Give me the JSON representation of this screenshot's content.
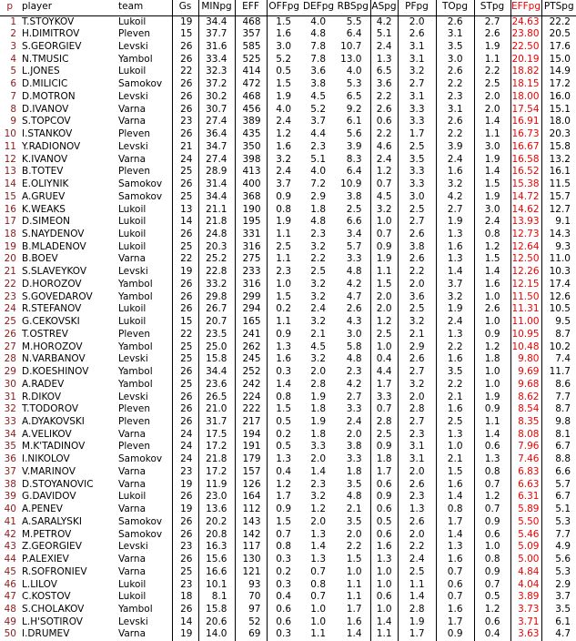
{
  "colors": {
    "highlight": "#f00000",
    "rank": "#8b1a1a",
    "text": "#000000",
    "grid": "#000000",
    "background": "#ffffff"
  },
  "table": {
    "columns": [
      {
        "key": "p",
        "label": "p"
      },
      {
        "key": "player",
        "label": "player"
      },
      {
        "key": "team",
        "label": "team"
      },
      {
        "key": "gs",
        "label": "Gs"
      },
      {
        "key": "minpg",
        "label": "MINpg"
      },
      {
        "key": "eff",
        "label": "EFF"
      },
      {
        "key": "offpg",
        "label": "OFFpg"
      },
      {
        "key": "defpg",
        "label": "DEFpg"
      },
      {
        "key": "rbspg",
        "label": "RBSpg"
      },
      {
        "key": "aspg",
        "label": "ASpg"
      },
      {
        "key": "pfpg",
        "label": "PFpg"
      },
      {
        "key": "topg",
        "label": "TOpg"
      },
      {
        "key": "stpg",
        "label": "STpg"
      },
      {
        "key": "effpg",
        "label": "EFFpg"
      },
      {
        "key": "ptspg",
        "label": "PTSpg"
      }
    ],
    "rows": [
      [
        "1",
        "T.STOYKOV",
        "Lukoil",
        "19",
        "34.4",
        "468",
        "1.5",
        "4.0",
        "5.5",
        "4.2",
        "2.0",
        "2.6",
        "2.7",
        "24.63",
        "22.2"
      ],
      [
        "2",
        "H.DIMITROV",
        "Pleven",
        "15",
        "37.7",
        "357",
        "1.6",
        "4.8",
        "6.4",
        "5.1",
        "2.6",
        "3.1",
        "2.6",
        "23.80",
        "20.5"
      ],
      [
        "3",
        "S.GEORGIEV",
        "Levski",
        "26",
        "31.6",
        "585",
        "3.0",
        "7.8",
        "10.7",
        "2.4",
        "3.1",
        "3.5",
        "1.9",
        "22.50",
        "17.6"
      ],
      [
        "4",
        "N.TMUSIC",
        "Yambol",
        "26",
        "33.4",
        "525",
        "5.2",
        "7.8",
        "13.0",
        "1.3",
        "3.1",
        "3.0",
        "1.1",
        "20.19",
        "15.0"
      ],
      [
        "5",
        "L.JONES",
        "Lukoil",
        "22",
        "32.3",
        "414",
        "0.5",
        "3.6",
        "4.0",
        "6.5",
        "3.2",
        "2.6",
        "2.2",
        "18.82",
        "14.9"
      ],
      [
        "6",
        "D.MILICIC",
        "Samokov",
        "26",
        "37.2",
        "472",
        "1.5",
        "3.8",
        "5.3",
        "3.6",
        "2.7",
        "2.2",
        "2.5",
        "18.15",
        "17.2"
      ],
      [
        "7",
        "D.MOTRON",
        "Levski",
        "26",
        "30.2",
        "468",
        "1.9",
        "4.5",
        "6.5",
        "2.2",
        "3.1",
        "2.3",
        "2.0",
        "18.00",
        "16.0"
      ],
      [
        "8",
        "D.IVANOV",
        "Varna",
        "26",
        "30.7",
        "456",
        "4.0",
        "5.2",
        "9.2",
        "2.6",
        "3.3",
        "3.1",
        "2.0",
        "17.54",
        "15.1"
      ],
      [
        "9",
        "S.TOPCOV",
        "Varna",
        "23",
        "27.4",
        "389",
        "2.4",
        "3.7",
        "6.1",
        "0.6",
        "3.3",
        "2.6",
        "1.4",
        "16.91",
        "18.0"
      ],
      [
        "10",
        "I.STANKOV",
        "Pleven",
        "26",
        "36.4",
        "435",
        "1.2",
        "4.4",
        "5.6",
        "2.2",
        "1.7",
        "2.2",
        "1.1",
        "16.73",
        "20.3"
      ],
      [
        "11",
        "Y.RADIONOV",
        "Levski",
        "21",
        "34.7",
        "350",
        "1.6",
        "2.3",
        "3.9",
        "4.6",
        "2.5",
        "3.9",
        "3.0",
        "16.67",
        "15.8"
      ],
      [
        "12",
        "K.IVANOV",
        "Varna",
        "24",
        "27.4",
        "398",
        "3.2",
        "5.1",
        "8.3",
        "2.4",
        "3.5",
        "2.4",
        "1.9",
        "16.58",
        "13.2"
      ],
      [
        "13",
        "B.TOTEV",
        "Pleven",
        "25",
        "28.9",
        "413",
        "2.4",
        "4.0",
        "6.4",
        "1.2",
        "3.3",
        "1.6",
        "1.4",
        "16.52",
        "16.1"
      ],
      [
        "14",
        "E.OLIYNIK",
        "Samokov",
        "26",
        "31.4",
        "400",
        "3.7",
        "7.2",
        "10.9",
        "0.7",
        "3.3",
        "3.2",
        "1.5",
        "15.38",
        "11.5"
      ],
      [
        "15",
        "A.GRUEV",
        "Samokov",
        "25",
        "34.4",
        "368",
        "0.9",
        "2.9",
        "3.8",
        "4.5",
        "3.0",
        "4.2",
        "1.9",
        "14.72",
        "15.7"
      ],
      [
        "16",
        "K.WEAKS",
        "Lukoil",
        "13",
        "21.1",
        "190",
        "0.8",
        "1.8",
        "2.5",
        "3.2",
        "2.5",
        "2.7",
        "3.0",
        "14.62",
        "12.7"
      ],
      [
        "17",
        "D.SIMEON",
        "Lukoil",
        "14",
        "21.8",
        "195",
        "1.9",
        "4.8",
        "6.6",
        "1.0",
        "2.7",
        "1.9",
        "2.4",
        "13.93",
        "9.1"
      ],
      [
        "18",
        "S.NAYDENOV",
        "Lukoil",
        "26",
        "24.8",
        "331",
        "1.1",
        "2.3",
        "3.4",
        "0.7",
        "2.6",
        "1.3",
        "0.8",
        "12.73",
        "14.3"
      ],
      [
        "19",
        "B.MLADENOV",
        "Lukoil",
        "25",
        "20.3",
        "316",
        "2.5",
        "3.2",
        "5.7",
        "0.9",
        "3.8",
        "1.6",
        "1.2",
        "12.64",
        "9.3"
      ],
      [
        "20",
        "B.BOEV",
        "Varna",
        "22",
        "25.2",
        "275",
        "1.1",
        "2.2",
        "3.3",
        "1.9",
        "2.6",
        "1.3",
        "1.5",
        "12.50",
        "11.0"
      ],
      [
        "21",
        "S.SLAVEYKOV",
        "Levski",
        "19",
        "22.8",
        "233",
        "2.3",
        "2.5",
        "4.8",
        "1.1",
        "2.2",
        "1.4",
        "1.4",
        "12.26",
        "10.3"
      ],
      [
        "22",
        "D.HOROZOV",
        "Yambol",
        "26",
        "33.2",
        "316",
        "1.0",
        "3.2",
        "4.2",
        "1.5",
        "2.0",
        "3.7",
        "1.6",
        "12.15",
        "17.4"
      ],
      [
        "23",
        "S.GOVEDAROV",
        "Yambol",
        "26",
        "29.8",
        "299",
        "1.5",
        "3.2",
        "4.7",
        "2.0",
        "3.6",
        "3.2",
        "1.0",
        "11.50",
        "12.6"
      ],
      [
        "24",
        "R.STEFANOV",
        "Lukoil",
        "26",
        "26.7",
        "294",
        "0.2",
        "2.4",
        "2.6",
        "2.0",
        "2.5",
        "1.9",
        "2.6",
        "11.31",
        "10.5"
      ],
      [
        "25",
        "G.CEKOVSKI",
        "Lukoil",
        "15",
        "20.7",
        "165",
        "1.1",
        "3.2",
        "4.3",
        "1.2",
        "3.2",
        "2.4",
        "1.0",
        "11.00",
        "9.5"
      ],
      [
        "26",
        "T.OSTREV",
        "Pleven",
        "22",
        "23.5",
        "241",
        "0.9",
        "2.1",
        "3.0",
        "2.5",
        "2.1",
        "1.3",
        "0.9",
        "10.95",
        "8.7"
      ],
      [
        "27",
        "M.HOROZOV",
        "Yambol",
        "25",
        "25.0",
        "262",
        "1.3",
        "4.5",
        "5.8",
        "1.0",
        "2.9",
        "2.2",
        "1.2",
        "10.48",
        "10.2"
      ],
      [
        "28",
        "N.VARBANOV",
        "Levski",
        "25",
        "15.8",
        "245",
        "1.6",
        "3.2",
        "4.8",
        "0.4",
        "2.6",
        "1.6",
        "1.8",
        "9.80",
        "7.4"
      ],
      [
        "29",
        "D.KOESHINOV",
        "Yambol",
        "26",
        "34.4",
        "252",
        "0.3",
        "2.0",
        "2.3",
        "4.4",
        "2.7",
        "3.5",
        "1.0",
        "9.69",
        "11.7"
      ],
      [
        "30",
        "A.RADEV",
        "Yambol",
        "25",
        "23.6",
        "242",
        "1.4",
        "2.8",
        "4.2",
        "1.7",
        "3.2",
        "2.2",
        "1.0",
        "9.68",
        "8.6"
      ],
      [
        "31",
        "R.DIKOV",
        "Levski",
        "26",
        "26.5",
        "224",
        "0.8",
        "1.9",
        "2.7",
        "3.3",
        "2.0",
        "2.1",
        "1.9",
        "8.62",
        "7.7"
      ],
      [
        "32",
        "T.TODOROV",
        "Pleven",
        "26",
        "21.0",
        "222",
        "1.5",
        "1.8",
        "3.3",
        "0.7",
        "2.8",
        "1.6",
        "0.9",
        "8.54",
        "8.7"
      ],
      [
        "33",
        "A.DYAKOVSKI",
        "Pleven",
        "26",
        "31.7",
        "217",
        "0.5",
        "1.9",
        "2.4",
        "2.8",
        "2.7",
        "2.5",
        "1.1",
        "8.35",
        "9.8"
      ],
      [
        "34",
        "A.VELIKOV",
        "Varna",
        "24",
        "17.5",
        "194",
        "0.2",
        "1.8",
        "2.0",
        "2.5",
        "2.3",
        "1.3",
        "1.4",
        "8.08",
        "8.1"
      ],
      [
        "35",
        "M.K'TADINOV",
        "Pleven",
        "24",
        "17.2",
        "191",
        "0.5",
        "3.3",
        "3.8",
        "0.9",
        "3.1",
        "1.0",
        "0.6",
        "7.96",
        "6.7"
      ],
      [
        "36",
        "I.NIKOLOV",
        "Samokov",
        "24",
        "21.8",
        "179",
        "1.3",
        "2.0",
        "3.3",
        "1.8",
        "3.1",
        "2.1",
        "1.3",
        "7.46",
        "8.8"
      ],
      [
        "37",
        "V.MARINOV",
        "Varna",
        "23",
        "17.2",
        "157",
        "0.4",
        "1.4",
        "1.8",
        "1.7",
        "2.0",
        "1.5",
        "0.8",
        "6.83",
        "6.6"
      ],
      [
        "38",
        "D.STOYANOVIC",
        "Varna",
        "19",
        "11.9",
        "126",
        "1.2",
        "2.3",
        "3.5",
        "0.6",
        "2.6",
        "1.6",
        "0.7",
        "6.63",
        "5.7"
      ],
      [
        "39",
        "G.DAVIDOV",
        "Lukoil",
        "26",
        "23.0",
        "164",
        "1.7",
        "3.2",
        "4.8",
        "0.9",
        "2.3",
        "1.4",
        "1.2",
        "6.31",
        "6.7"
      ],
      [
        "40",
        "A.PENEV",
        "Varna",
        "19",
        "13.6",
        "112",
        "0.9",
        "1.2",
        "2.1",
        "0.6",
        "1.3",
        "0.8",
        "0.7",
        "5.89",
        "5.1"
      ],
      [
        "41",
        "A.SARALYSKI",
        "Samokov",
        "26",
        "20.2",
        "143",
        "1.5",
        "2.0",
        "3.5",
        "0.5",
        "2.6",
        "1.7",
        "0.9",
        "5.50",
        "5.3"
      ],
      [
        "42",
        "M.PETROV",
        "Samokov",
        "26",
        "20.8",
        "142",
        "0.7",
        "1.3",
        "2.0",
        "0.6",
        "2.0",
        "1.4",
        "0.6",
        "5.46",
        "7.7"
      ],
      [
        "43",
        "Z.GEORGIEV",
        "Levski",
        "23",
        "16.3",
        "117",
        "0.8",
        "1.4",
        "2.2",
        "1.6",
        "2.2",
        "1.3",
        "1.0",
        "5.09",
        "4.9"
      ],
      [
        "44",
        "P.ALEXIEV",
        "Varna",
        "26",
        "15.6",
        "130",
        "0.3",
        "1.3",
        "1.5",
        "1.3",
        "2.4",
        "1.6",
        "0.8",
        "5.00",
        "5.6"
      ],
      [
        "45",
        "R.SOFRONIEV",
        "Varna",
        "25",
        "16.6",
        "121",
        "0.2",
        "0.7",
        "1.0",
        "1.0",
        "2.5",
        "0.7",
        "0.9",
        "4.84",
        "5.3"
      ],
      [
        "46",
        "L.LILOV",
        "Lukoil",
        "23",
        "10.1",
        "93",
        "0.3",
        "0.8",
        "1.1",
        "1.0",
        "1.1",
        "0.6",
        "0.7",
        "4.04",
        "2.9"
      ],
      [
        "47",
        "C.KOSTOV",
        "Lukoil",
        "18",
        "8.1",
        "70",
        "0.4",
        "0.7",
        "1.1",
        "0.6",
        "1.4",
        "0.7",
        "0.5",
        "3.89",
        "3.7"
      ],
      [
        "48",
        "S.CHOLAKOV",
        "Yambol",
        "26",
        "15.8",
        "97",
        "0.6",
        "1.0",
        "1.7",
        "1.0",
        "2.8",
        "1.6",
        "1.2",
        "3.73",
        "3.5"
      ],
      [
        "49",
        "L.H'SOTIROV",
        "Levski",
        "14",
        "20.6",
        "52",
        "0.6",
        "1.0",
        "1.6",
        "1.4",
        "1.9",
        "1.7",
        "0.6",
        "3.71",
        "6.1"
      ],
      [
        "50",
        "I.DRUMEV",
        "Varna",
        "19",
        "14.0",
        "69",
        "0.3",
        "1.1",
        "1.4",
        "1.1",
        "1.7",
        "0.9",
        "0.4",
        "3.63",
        "4.7"
      ]
    ]
  }
}
